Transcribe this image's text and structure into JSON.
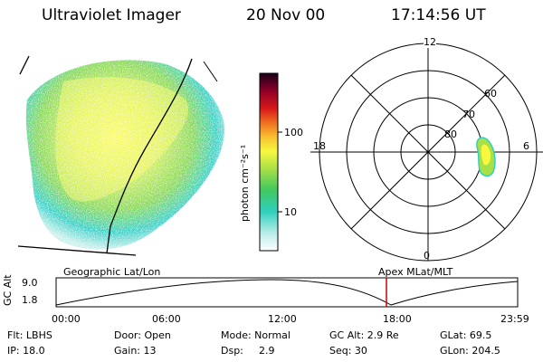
{
  "header": {
    "instrument": "Ultraviolet Imager",
    "date": "20 Nov 00",
    "time": "17:14:56 UT"
  },
  "colorbar": {
    "unit_label": "photon cm⁻²s⁻¹",
    "ticks": [
      "100",
      "10"
    ]
  },
  "polar_plot": {
    "mlt_labels": {
      "top": "12",
      "right": "6",
      "bottom": "0",
      "left": "18"
    },
    "lat_labels": [
      "60",
      "70",
      "80"
    ]
  },
  "timeline": {
    "left_caption": "Geographic Lat/Lon",
    "right_caption": "Apex MLat/MLT",
    "axis_label": "GC Alt",
    "y_ticks": [
      "9.0",
      "1.8"
    ],
    "x_ticks": [
      "00:00",
      "06:00",
      "12:00",
      "18:00",
      "23:59"
    ],
    "current_time": "17:14:56",
    "marker_color": "#cc0000"
  },
  "status": {
    "filter": "Flt: LBHS",
    "ip": "IP: 18.0",
    "door": "Door: Open",
    "gain": "Gain: 13",
    "mode": "Mode: Normal",
    "dsp_label": "Dsp:",
    "dsp_value": "2.9",
    "gc_alt": "GC Alt: 2.9 Re",
    "seq": "Seq: 30",
    "glat": "GLat: 69.5",
    "glon": "GLon: 204.5"
  }
}
